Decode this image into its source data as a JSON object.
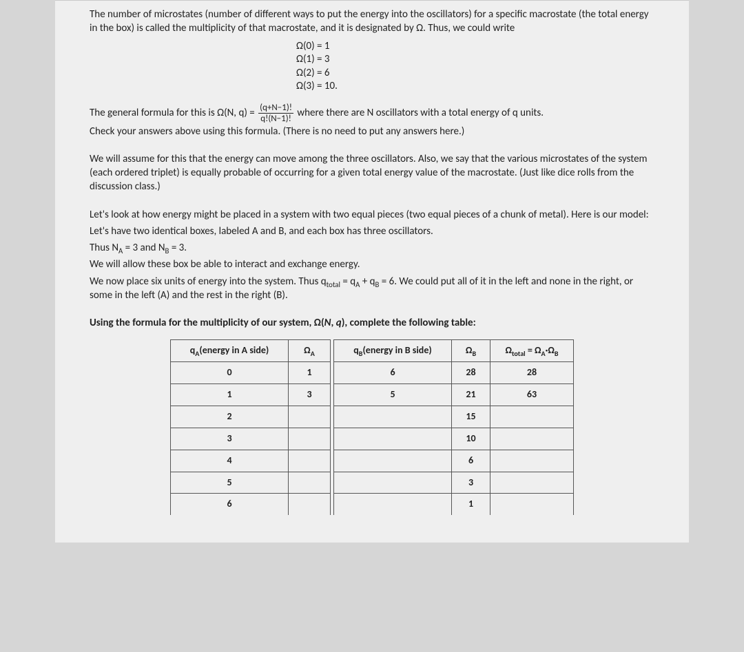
{
  "intro": {
    "p1": "The number of microstates (number of different ways to put the energy into the oscillators) for a specific macrostate (the total energy in the box) is called the multiplicity of that macrostate, and it is designated by Ω. Thus, we could write",
    "eq0": "Ω(0) = 1",
    "eq1": "Ω(1) = 3",
    "eq2": "Ω(2) = 6",
    "eq3": "Ω(3) = 10."
  },
  "formula": {
    "lead": "The general formula for this is Ω(N, q) = ",
    "num": "(q+N−1)!",
    "den": "q!(N−1)!",
    "tail": " where there are N oscillators with a total energy of q units.",
    "check": "Check your answers above using this formula.   (There is no need to put any answers here.)"
  },
  "assume": "We will assume for this that the energy can move among the three oscillators.  Also, we say that the various microstates of the system (each ordered triplet) is equally probable of occurring for a given total energy value of the macrostate.  (Just like dice rolls from the discussion class.)",
  "model": {
    "l1": "Let's look at how energy might be placed in a system with two equal pieces (two equal pieces of a chunk of metal).  Here is our model:",
    "l2": "Let's have two identical boxes, labeled A and B, and each box has three oscillators.",
    "l3a": "Thus N",
    "l3b": " = 3 and N",
    "l3c": " = 3.",
    "l4": "We will allow these box be able to interact and exchange energy.",
    "l5a": "We now place six units of energy into the system.  Thus q",
    "l5b": " = q",
    "l5c": " + q",
    "l5d": " = 6.  We could put all of it in the left and none in the right, or some in the left (A) and the rest in the right (B)."
  },
  "prompt": {
    "a": "Using the formula for the multiplicity of our system, Ω(",
    "b": "), complete the following table:"
  },
  "table": {
    "h_qa_a": "q",
    "h_qa_b": "(energy in A side)",
    "h_oa_a": "Ω",
    "h_qb_a": "q",
    "h_qb_b": "(energy in B side)",
    "h_ob_a": "Ω",
    "h_tot_a": "Ω",
    "h_tot_b": " = Ω",
    "h_tot_c": "·Ω",
    "rows": [
      {
        "qa": "0",
        "oa": "1",
        "qb": "6",
        "ob": "28",
        "tot": "28"
      },
      {
        "qa": "1",
        "oa": "3",
        "qb": "5",
        "ob": "21",
        "tot": "63"
      },
      {
        "qa": "2",
        "oa": "",
        "qb": "",
        "ob": "15",
        "tot": ""
      },
      {
        "qa": "3",
        "oa": "",
        "qb": "",
        "ob": "10",
        "tot": ""
      },
      {
        "qa": "4",
        "oa": "",
        "qb": "",
        "ob": "6",
        "tot": ""
      },
      {
        "qa": "5",
        "oa": "",
        "qb": "",
        "ob": "3",
        "tot": ""
      },
      {
        "qa": "6",
        "oa": "",
        "qb": "",
        "ob": "1",
        "tot": ""
      }
    ]
  }
}
